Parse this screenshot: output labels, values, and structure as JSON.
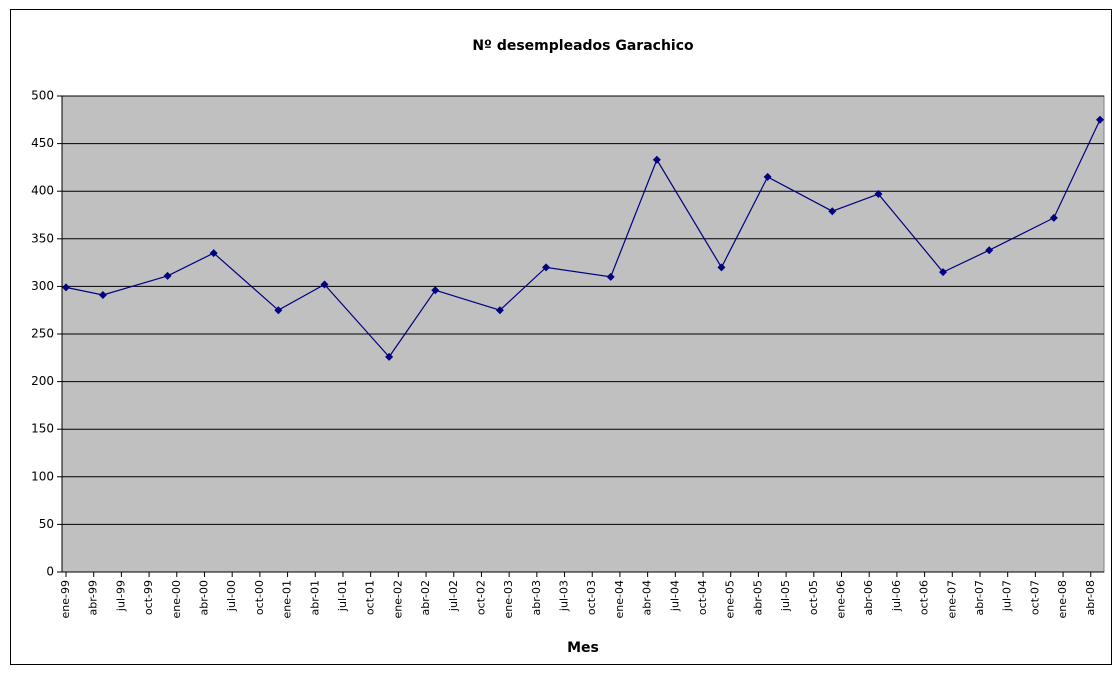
{
  "chart_data": {
    "type": "line",
    "title": "Nº desempleados Garachico",
    "xlabel": "Mes",
    "x": [
      "1999-01",
      "1999-05",
      "1999-12",
      "2000-05",
      "2000-12",
      "2001-05",
      "2001-12",
      "2002-05",
      "2002-12",
      "2003-05",
      "2003-12",
      "2004-05",
      "2004-12",
      "2005-05",
      "2005-12",
      "2006-05",
      "2006-12",
      "2007-05",
      "2007-12",
      "2008-05"
    ],
    "series": [
      {
        "name": "Nº desempleados",
        "color": "#000080",
        "values": [
          299,
          291,
          311,
          335,
          275,
          302,
          226,
          296,
          275,
          320,
          310,
          433,
          320,
          415,
          379,
          397,
          315,
          338,
          372,
          475
        ]
      }
    ],
    "xlim": [
      "1999-01",
      "2008-05"
    ],
    "xticks": [
      {
        "value": "1999-01",
        "label": "ene-99"
      },
      {
        "value": "1999-04",
        "label": "abr-99"
      },
      {
        "value": "1999-07",
        "label": "jul-99"
      },
      {
        "value": "1999-10",
        "label": "oct-99"
      },
      {
        "value": "2000-01",
        "label": "ene-00"
      },
      {
        "value": "2000-04",
        "label": "abr-00"
      },
      {
        "value": "2000-07",
        "label": "jul-00"
      },
      {
        "value": "2000-10",
        "label": "oct-00"
      },
      {
        "value": "2001-01",
        "label": "ene-01"
      },
      {
        "value": "2001-04",
        "label": "abr-01"
      },
      {
        "value": "2001-07",
        "label": "jul-01"
      },
      {
        "value": "2001-10",
        "label": "oct-01"
      },
      {
        "value": "2002-01",
        "label": "ene-02"
      },
      {
        "value": "2002-04",
        "label": "abr-02"
      },
      {
        "value": "2002-07",
        "label": "jul-02"
      },
      {
        "value": "2002-10",
        "label": "oct-02"
      },
      {
        "value": "2003-01",
        "label": "ene-03"
      },
      {
        "value": "2003-04",
        "label": "abr-03"
      },
      {
        "value": "2003-07",
        "label": "jul-03"
      },
      {
        "value": "2003-10",
        "label": "oct-03"
      },
      {
        "value": "2004-01",
        "label": "ene-04"
      },
      {
        "value": "2004-04",
        "label": "abr-04"
      },
      {
        "value": "2004-07",
        "label": "jul-04"
      },
      {
        "value": "2004-10",
        "label": "oct-04"
      },
      {
        "value": "2005-01",
        "label": "ene-05"
      },
      {
        "value": "2005-04",
        "label": "abr-05"
      },
      {
        "value": "2005-07",
        "label": "jul-05"
      },
      {
        "value": "2005-10",
        "label": "oct-05"
      },
      {
        "value": "2006-01",
        "label": "ene-06"
      },
      {
        "value": "2006-04",
        "label": "abr-06"
      },
      {
        "value": "2006-07",
        "label": "jul-06"
      },
      {
        "value": "2006-10",
        "label": "oct-06"
      },
      {
        "value": "2007-01",
        "label": "ene-07"
      },
      {
        "value": "2007-04",
        "label": "abr-07"
      },
      {
        "value": "2007-07",
        "label": "jul-07"
      },
      {
        "value": "2007-10",
        "label": "oct-07"
      },
      {
        "value": "2008-01",
        "label": "ene-08"
      },
      {
        "value": "2008-04",
        "label": "abr-08"
      }
    ],
    "ylim": [
      0,
      500
    ],
    "yticks": [
      0,
      50,
      100,
      150,
      200,
      250,
      300,
      350,
      400,
      450,
      500
    ],
    "grid": true
  }
}
